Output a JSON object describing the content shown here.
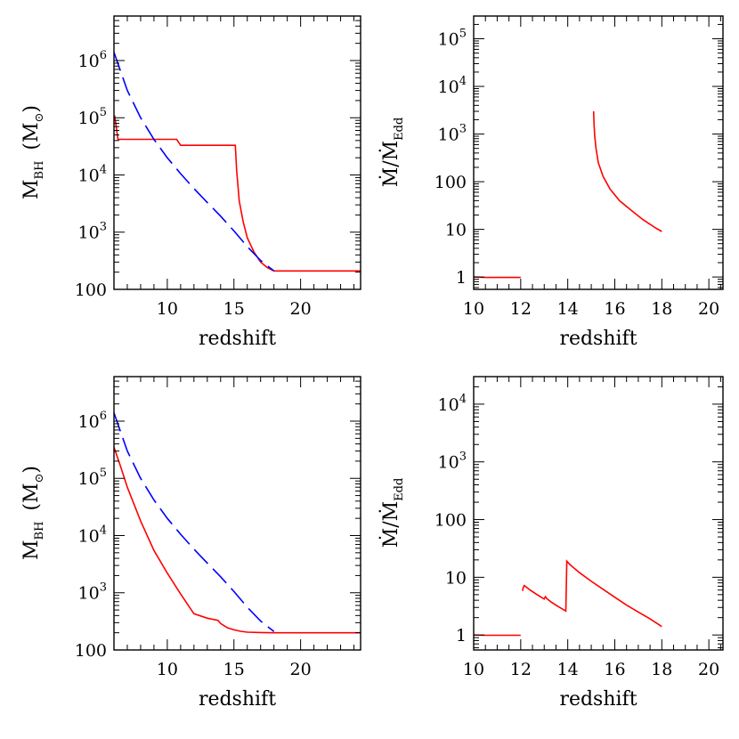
{
  "chart_data": [
    {
      "type": "line",
      "xlabel": "redshift",
      "ylabel": "M_BH (M_sun)",
      "ylabel_parts": {
        "main": "M",
        "sub": "BH",
        "unit_open": "(M",
        "unit_sub": "⊙",
        "unit_close": ")"
      },
      "xlim": [
        6,
        24.5
      ],
      "ylim": [
        100,
        6000000
      ],
      "yscale": "log",
      "xticks": [
        10,
        15,
        20
      ],
      "yticks": [
        {
          "value": 100,
          "label": "100"
        },
        {
          "value": 1000,
          "base": "10",
          "exp": "3"
        },
        {
          "value": 10000,
          "base": "10",
          "exp": "4"
        },
        {
          "value": 100000,
          "base": "10",
          "exp": "5"
        },
        {
          "value": 1000000,
          "base": "10",
          "exp": "6"
        }
      ],
      "series": [
        {
          "color": "#ff0000",
          "style": "solid",
          "x": [
            6.05,
            6.3,
            10.7,
            11.0,
            15.1,
            15.2,
            15.4,
            15.7,
            16.0,
            16.5,
            17.0,
            17.5,
            18.0,
            24.5
          ],
          "y": [
            110000,
            42000,
            42000,
            33000,
            33000,
            12000,
            3500,
            1500,
            800,
            450,
            300,
            240,
            210,
            210
          ]
        },
        {
          "color": "#0000ff",
          "style": "dashed",
          "x": [
            6.0,
            7.0,
            8.0,
            9.0,
            10.0,
            11.0,
            12.0,
            13.0,
            14.0,
            15.0,
            16.0,
            17.0,
            18.0
          ],
          "y": [
            1400000,
            300000,
            100000,
            42000,
            20000,
            10500,
            5800,
            3300,
            1900,
            1050,
            560,
            320,
            210
          ]
        }
      ]
    },
    {
      "type": "line",
      "xlabel": "redshift",
      "ylabel": "Ṁ/Ṁ_Edd",
      "ylabel_parts": {
        "main": "Ṁ/Ṁ",
        "sub": "Edd"
      },
      "xlim": [
        10,
        20.6
      ],
      "ylim": [
        0.55,
        300000
      ],
      "yscale": "log",
      "xticks": [
        10,
        12,
        14,
        16,
        18,
        20
      ],
      "yticks": [
        {
          "value": 1,
          "label": "1"
        },
        {
          "value": 10,
          "label": "10"
        },
        {
          "value": 100,
          "label": "100"
        },
        {
          "value": 1000,
          "base": "10",
          "exp": "3"
        },
        {
          "value": 10000,
          "base": "10",
          "exp": "4"
        },
        {
          "value": 100000,
          "base": "10",
          "exp": "5"
        }
      ],
      "series": [
        {
          "color": "#ff0000",
          "style": "solid",
          "x": [
            10.0,
            10.5,
            11.0,
            11.5,
            12.0
          ],
          "y": [
            1.0,
            0.98,
            0.98,
            0.98,
            0.98
          ]
        },
        {
          "color": "#ff0000",
          "style": "solid",
          "x": [
            15.1,
            15.12,
            15.15,
            15.2,
            15.3,
            15.5,
            15.8,
            16.2,
            16.7,
            17.2,
            17.7,
            18.0
          ],
          "y": [
            3000,
            1600,
            900,
            500,
            250,
            130,
            70,
            40,
            25,
            16,
            11,
            9
          ]
        }
      ]
    },
    {
      "type": "line",
      "xlabel": "redshift",
      "ylabel": "M_BH (M_sun)",
      "ylabel_parts": {
        "main": "M",
        "sub": "BH",
        "unit_open": "(M",
        "unit_sub": "⊙",
        "unit_close": ")"
      },
      "xlim": [
        6,
        24.5
      ],
      "ylim": [
        100,
        6000000
      ],
      "yscale": "log",
      "xticks": [
        10,
        15,
        20
      ],
      "yticks": [
        {
          "value": 100,
          "label": "100"
        },
        {
          "value": 1000,
          "base": "10",
          "exp": "3"
        },
        {
          "value": 10000,
          "base": "10",
          "exp": "4"
        },
        {
          "value": 100000,
          "base": "10",
          "exp": "5"
        },
        {
          "value": 1000000,
          "base": "10",
          "exp": "6"
        }
      ],
      "series": [
        {
          "color": "#ff0000",
          "style": "solid",
          "x": [
            6.0,
            6.5,
            7.0,
            8.0,
            9.0,
            10.0,
            11.0,
            12.0,
            13.0,
            13.8,
            14.0,
            14.5,
            15.0,
            15.5,
            16.0,
            17.0,
            18.0,
            24.5
          ],
          "y": [
            350000,
            160000,
            70000,
            18000,
            5500,
            2200,
            950,
            430,
            360,
            330,
            290,
            245,
            225,
            212,
            205,
            202,
            200,
            200
          ]
        },
        {
          "color": "#0000ff",
          "style": "dashed",
          "x": [
            6.0,
            7.0,
            8.0,
            9.0,
            10.0,
            11.0,
            12.0,
            13.0,
            14.0,
            15.0,
            16.0,
            17.0,
            18.0
          ],
          "y": [
            1400000,
            300000,
            100000,
            42000,
            20000,
            10500,
            5800,
            3300,
            1900,
            1050,
            560,
            320,
            210
          ]
        }
      ]
    },
    {
      "type": "line",
      "xlabel": "redshift",
      "ylabel": "Ṁ/Ṁ_Edd",
      "ylabel_parts": {
        "main": "Ṁ/Ṁ",
        "sub": "Edd"
      },
      "xlim": [
        10,
        20.6
      ],
      "ylim": [
        0.55,
        30000
      ],
      "yscale": "log",
      "xticks": [
        10,
        12,
        14,
        16,
        18,
        20
      ],
      "yticks": [
        {
          "value": 1,
          "label": "1"
        },
        {
          "value": 10,
          "label": "10"
        },
        {
          "value": 100,
          "label": "100"
        },
        {
          "value": 1000,
          "base": "10",
          "exp": "3"
        },
        {
          "value": 10000,
          "base": "10",
          "exp": "4"
        }
      ],
      "series": [
        {
          "color": "#ff0000",
          "style": "solid",
          "x": [
            10.0,
            10.5,
            11.0,
            11.5,
            12.0
          ],
          "y": [
            1.0,
            0.99,
            0.99,
            0.99,
            0.99
          ]
        },
        {
          "color": "#ff0000",
          "style": "solid",
          "x": [
            12.08,
            12.1,
            12.15,
            12.4,
            12.7,
            13.0,
            13.05,
            13.1,
            13.3,
            13.6,
            13.92,
            13.96,
            14.1,
            14.5,
            15.0,
            15.5,
            16.0,
            16.5,
            17.0,
            17.5,
            18.0
          ],
          "y": [
            5.8,
            6.5,
            7.2,
            6.0,
            5.0,
            4.2,
            4.6,
            4.3,
            3.7,
            3.1,
            2.6,
            19.0,
            16.5,
            12.0,
            8.5,
            6.2,
            4.5,
            3.3,
            2.5,
            1.9,
            1.4
          ]
        }
      ]
    }
  ]
}
